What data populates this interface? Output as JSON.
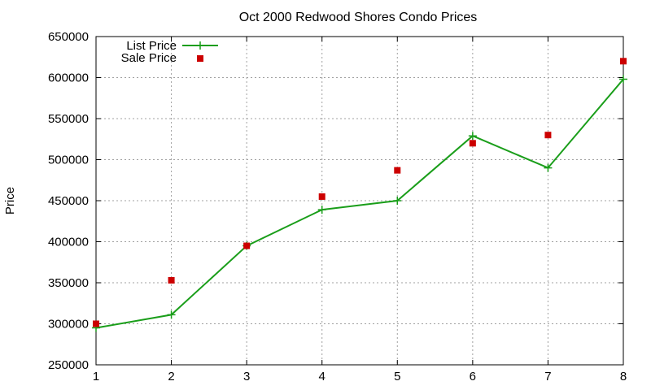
{
  "chart_data": {
    "type": "line",
    "title": "Oct 2000 Redwood Shores Condo Prices",
    "xlabel": "",
    "ylabel": "Price",
    "x": [
      1,
      2,
      3,
      4,
      5,
      6,
      7,
      8
    ],
    "xlim": [
      1,
      8
    ],
    "ylim": [
      250000,
      650000
    ],
    "xticks": [
      "1",
      "2",
      "3",
      "4",
      "5",
      "6",
      "7",
      "8"
    ],
    "yticks": [
      "250000",
      "300000",
      "350000",
      "400000",
      "450000",
      "500000",
      "550000",
      "600000",
      "650000"
    ],
    "grid": true,
    "legend_position": "top-left",
    "series": [
      {
        "name": "List Price",
        "style": "line-with-plus-markers",
        "color": "#1a9e1a",
        "values": [
          295000,
          311000,
          395000,
          439000,
          450000,
          529000,
          490000,
          598000
        ]
      },
      {
        "name": "Sale Price",
        "style": "square-markers",
        "color": "#cc0000",
        "values": [
          300000,
          353000,
          395000,
          455000,
          487000,
          520000,
          530000,
          620000
        ]
      }
    ]
  }
}
